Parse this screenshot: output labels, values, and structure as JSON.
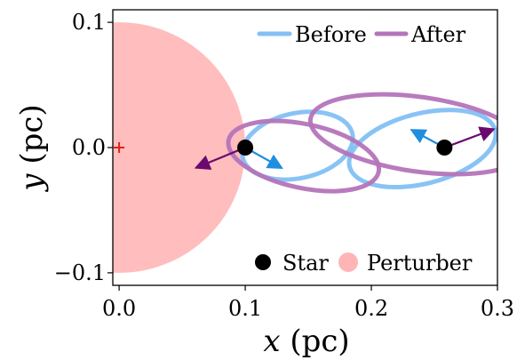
{
  "chart_data": {
    "type": "scatter",
    "x_axis": {
      "label_var": "x",
      "label_unit": "(pc)",
      "lim": [
        -0.005,
        0.3
      ],
      "ticks": [
        0.0,
        0.1,
        0.2,
        0.3
      ],
      "tick_labels": [
        "0.0",
        "0.1",
        "0.2",
        "0.3"
      ]
    },
    "y_axis": {
      "label_var": "y",
      "label_unit": "(pc)",
      "lim": [
        -0.11,
        0.11
      ],
      "ticks": [
        -0.1,
        0.0,
        0.1
      ],
      "tick_labels": [
        "−0.1",
        "0.0",
        "0.1"
      ]
    },
    "legend_top": [
      {
        "label": "Before",
        "color": "#83c0f5"
      },
      {
        "label": "After",
        "color": "#b474b9"
      }
    ],
    "legend_bottom": [
      {
        "label": "Star",
        "color": "#000000"
      },
      {
        "label": "Perturber",
        "color": "#ffb5b5"
      }
    ],
    "perturber": {
      "center": [
        0.0,
        0.0
      ],
      "radius": 0.1,
      "color": "#ffbdbd",
      "marker": "+",
      "marker_color": "#e0201b"
    },
    "stars": [
      {
        "x": 0.1,
        "y": 0.0
      },
      {
        "x": 0.258,
        "y": 0.0
      }
    ],
    "orbits_before": [
      {
        "cx": 0.1415,
        "cy": 0.0015,
        "a": 0.0445,
        "b": 0.026,
        "angle_deg": 12,
        "color": "#83c0f5"
      },
      {
        "cx": 0.2405,
        "cy": -0.0008,
        "a": 0.0595,
        "b": 0.028,
        "angle_deg": 14,
        "color": "#83c0f5"
      }
    ],
    "orbits_after": [
      {
        "cx": 0.1463,
        "cy": -0.0068,
        "a": 0.0608,
        "b": 0.0255,
        "angle_deg": -12,
        "color": "#b474b9"
      },
      {
        "cx": 0.2377,
        "cy": 0.0106,
        "a": 0.0868,
        "b": 0.0298,
        "angle_deg": -8,
        "color": "#b474b9"
      }
    ],
    "velocity_before": [
      {
        "x0": 0.1,
        "y0": 0.0,
        "x1": 0.1275,
        "y1": -0.0155,
        "color": "#1f8de0"
      },
      {
        "x0": 0.258,
        "y0": 0.0,
        "x1": 0.2333,
        "y1": 0.0133,
        "color": "#1f8de0"
      }
    ],
    "velocity_after": [
      {
        "x0": 0.1,
        "y0": 0.0,
        "x1": 0.0625,
        "y1": -0.0155,
        "color": "#6a0a6e"
      },
      {
        "x0": 0.258,
        "y0": 0.0,
        "x1": 0.2955,
        "y1": 0.0141,
        "color": "#6a0a6e"
      }
    ]
  }
}
